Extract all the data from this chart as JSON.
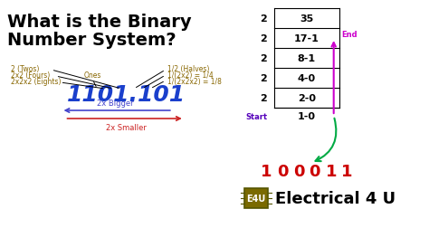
{
  "title_line1": "What is the Binary",
  "title_line2": "Number System?",
  "bg_color": "#ffffff",
  "title_color": "#000000",
  "binary_number": "1101.101",
  "binary_color": "#1a3fcc",
  "label_color": "#886600",
  "arrow_bigger_label": "2x Bigger",
  "arrow_smaller_label": "2x Smaller",
  "arrow_bigger_color": "#4444cc",
  "arrow_smaller_color": "#cc2222",
  "division_rows": [
    {
      "divisor": "2",
      "row": "35",
      "remainder": ""
    },
    {
      "divisor": "2",
      "row": "17-1",
      "remainder": "End"
    },
    {
      "divisor": "2",
      "row": "8-1",
      "remainder": ""
    },
    {
      "divisor": "2",
      "row": "4-0",
      "remainder": ""
    },
    {
      "divisor": "2",
      "row": "2-0",
      "remainder": ""
    },
    {
      "divisor": "",
      "row": "1-0",
      "remainder": "Start"
    }
  ],
  "result_digits": [
    "1",
    "0",
    "0",
    "0",
    "1",
    "1"
  ],
  "result_color": "#cc0000",
  "brand_text": "Electrical 4 U",
  "brand_color": "#000000",
  "magenta_color": "#cc00cc",
  "green_color": "#00aa44",
  "start_color": "#5500bb",
  "chip_face_color": "#7a6a00",
  "chip_edge_color": "#555500"
}
